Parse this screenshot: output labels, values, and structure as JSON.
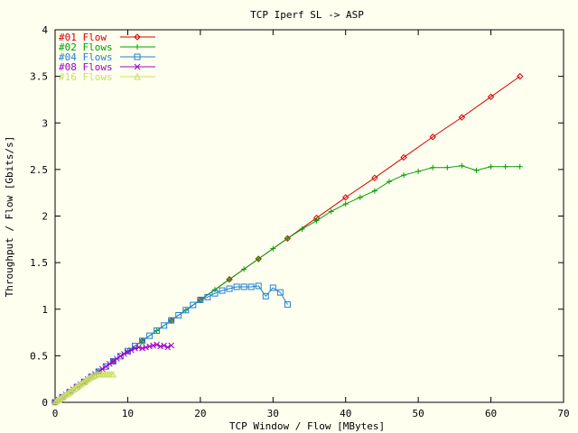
{
  "chart_data": {
    "type": "line",
    "title": "TCP Iperf SL -> ASP",
    "xlabel": "TCP Window / Flow [MBytes]",
    "ylabel": "Throughput / Flow [Gbits/s]",
    "xlim": [
      0,
      70
    ],
    "ylim": [
      0,
      4
    ],
    "xticks": [
      "0",
      "10",
      "20",
      "30",
      "40",
      "50",
      "60",
      "70"
    ],
    "yticks": [
      "0",
      "0.5",
      "1",
      "1.5",
      "2",
      "2.5",
      "3",
      "3.5",
      "4"
    ],
    "grid": false,
    "legend_position": "top-left",
    "series": [
      {
        "name": "#01 Flow",
        "color": "#d40000",
        "marker": "diamond",
        "x": [
          0,
          4,
          8,
          12,
          16,
          20,
          24,
          28,
          32,
          36,
          40,
          44,
          48,
          52,
          56,
          60,
          64
        ],
        "y": [
          0,
          0.22,
          0.44,
          0.66,
          0.88,
          1.1,
          1.32,
          1.54,
          1.76,
          1.98,
          2.2,
          2.41,
          2.63,
          2.85,
          3.06,
          3.28,
          3.5
        ]
      },
      {
        "name": "#02 Flows",
        "color": "#00a000",
        "marker": "plus",
        "x": [
          0,
          2,
          4,
          6,
          8,
          10,
          12,
          14,
          16,
          18,
          20,
          22,
          24,
          26,
          28,
          30,
          32,
          34,
          36,
          38,
          40,
          42,
          44,
          46,
          48,
          50,
          52,
          54,
          56,
          58,
          60,
          62,
          64
        ],
        "y": [
          0,
          0.11,
          0.22,
          0.33,
          0.44,
          0.55,
          0.66,
          0.77,
          0.88,
          0.99,
          1.1,
          1.21,
          1.32,
          1.43,
          1.54,
          1.65,
          1.76,
          1.86,
          1.95,
          2.05,
          2.13,
          2.2,
          2.27,
          2.37,
          2.44,
          2.48,
          2.52,
          2.52,
          2.54,
          2.49,
          2.53,
          2.53,
          2.53
        ]
      },
      {
        "name": "#04 Flows",
        "color": "#2080d0",
        "marker": "square",
        "x": [
          0,
          1,
          2,
          3,
          4,
          5,
          6,
          7,
          8,
          9,
          10,
          11,
          12,
          13,
          14,
          15,
          16,
          17,
          18,
          19,
          20,
          21,
          22,
          23,
          24,
          25,
          26,
          27,
          28,
          29,
          30,
          31,
          32
        ],
        "y": [
          0,
          0.055,
          0.11,
          0.165,
          0.22,
          0.275,
          0.33,
          0.385,
          0.44,
          0.495,
          0.55,
          0.605,
          0.66,
          0.715,
          0.77,
          0.825,
          0.88,
          0.935,
          0.99,
          1.045,
          1.1,
          1.13,
          1.17,
          1.2,
          1.22,
          1.24,
          1.24,
          1.24,
          1.25,
          1.14,
          1.23,
          1.18,
          1.05
        ]
      },
      {
        "name": "#08 Flows",
        "color": "#a000d0",
        "marker": "x",
        "x": [
          0,
          0.5,
          1,
          1.5,
          2,
          2.5,
          3,
          3.5,
          4,
          4.5,
          5,
          5.5,
          6,
          6.5,
          7,
          7.5,
          8,
          8.5,
          9,
          9.5,
          10,
          10.5,
          11,
          11.5,
          12,
          12.5,
          13,
          13.5,
          14,
          14.5,
          15,
          15.5,
          16
        ],
        "y": [
          0,
          0.028,
          0.055,
          0.083,
          0.11,
          0.138,
          0.165,
          0.193,
          0.22,
          0.248,
          0.275,
          0.303,
          0.33,
          0.358,
          0.385,
          0.413,
          0.44,
          0.468,
          0.495,
          0.52,
          0.54,
          0.56,
          0.58,
          0.59,
          0.58,
          0.59,
          0.6,
          0.61,
          0.62,
          0.6,
          0.61,
          0.59,
          0.61
        ]
      },
      {
        "name": "#16 Flows",
        "color": "#c8e060",
        "marker": "triangle",
        "x": [
          0,
          0.25,
          0.5,
          0.75,
          1,
          1.25,
          1.5,
          1.75,
          2,
          2.25,
          2.5,
          2.75,
          3,
          3.25,
          3.5,
          3.75,
          4,
          4.25,
          4.5,
          4.75,
          5,
          5.25,
          5.5,
          5.75,
          6,
          6.25,
          6.5,
          6.75,
          7,
          7.25,
          7.5,
          7.75,
          8
        ],
        "y": [
          0,
          0.014,
          0.028,
          0.041,
          0.055,
          0.069,
          0.083,
          0.096,
          0.11,
          0.124,
          0.138,
          0.151,
          0.165,
          0.179,
          0.193,
          0.206,
          0.22,
          0.234,
          0.248,
          0.261,
          0.275,
          0.28,
          0.29,
          0.3,
          0.3,
          0.3,
          0.3,
          0.3,
          0.3,
          0.3,
          0.3,
          0.3,
          0.3
        ]
      }
    ]
  }
}
